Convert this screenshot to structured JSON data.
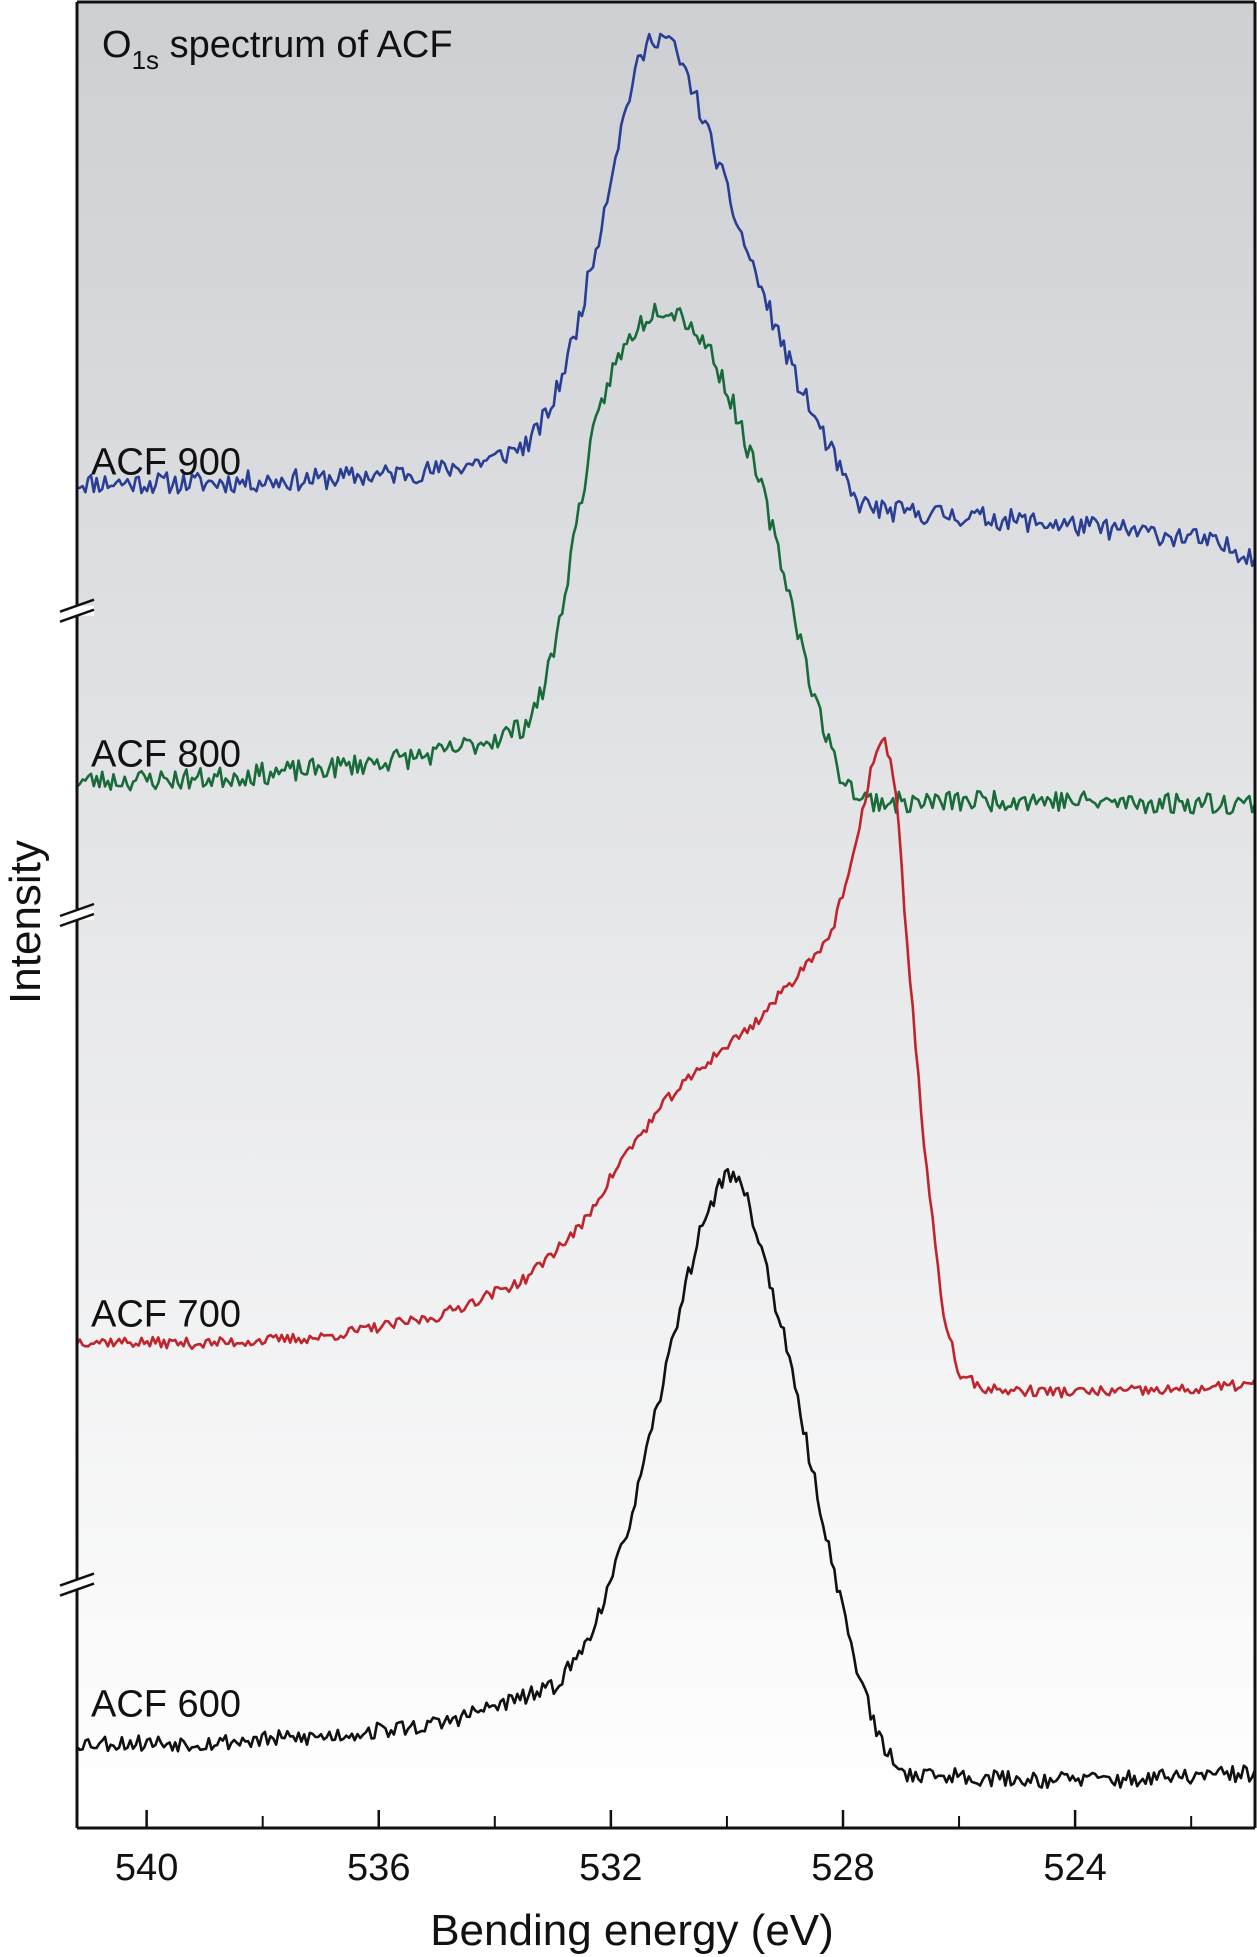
{
  "chart_data": {
    "type": "line",
    "title": {
      "main": "O",
      "subscript": "1s",
      "rest": " spectrum of ACF"
    },
    "xlabel": "Bending energy (eV)",
    "ylabel": "Intensity",
    "x_reversed": true,
    "xlim": [
      541.2,
      520.9
    ],
    "x_ticks": [
      540,
      536,
      532,
      528,
      524
    ],
    "x_minor_ticks": [
      538,
      534,
      530,
      526,
      522
    ],
    "y_units": "arbitrary (stacked)",
    "grid": false,
    "background": "vertical gradient, grey (top) to white (bottom)",
    "axis_breaks": "left axis, between each stacked spectrum",
    "series": [
      {
        "name": "ACF 900",
        "label": "ACF 900",
        "color": "#2a3f94",
        "baseline": 8.2,
        "noise": 0.09,
        "seed": 11,
        "points": [
          [
            541.2,
            8.05
          ],
          [
            539,
            8.05
          ],
          [
            537,
            8.08
          ],
          [
            535,
            8.15
          ],
          [
            534,
            8.25
          ],
          [
            533.4,
            8.38
          ],
          [
            533,
            8.7
          ],
          [
            532.6,
            9.3
          ],
          [
            532.2,
            10.1
          ],
          [
            531.9,
            10.8
          ],
          [
            531.6,
            11.4
          ],
          [
            531.3,
            11.72
          ],
          [
            531.0,
            11.7
          ],
          [
            530.6,
            11.3
          ],
          [
            530.2,
            10.75
          ],
          [
            529.8,
            10.15
          ],
          [
            529.3,
            9.5
          ],
          [
            528.8,
            8.9
          ],
          [
            528.2,
            8.3
          ],
          [
            527.8,
            7.9
          ],
          [
            527.3,
            7.82
          ],
          [
            526,
            7.78
          ],
          [
            524,
            7.7
          ],
          [
            522,
            7.6
          ],
          [
            520.9,
            7.45
          ]
        ]
      },
      {
        "name": "ACF 800",
        "label": "ACF 800",
        "color": "#1a6b3a",
        "baseline": 5.8,
        "noise": 0.09,
        "seed": 23,
        "points": [
          [
            541.2,
            5.6
          ],
          [
            539,
            5.62
          ],
          [
            537,
            5.7
          ],
          [
            535,
            5.82
          ],
          [
            534,
            5.95
          ],
          [
            533.5,
            6.05
          ],
          [
            533.2,
            6.3
          ],
          [
            532.9,
            6.85
          ],
          [
            532.6,
            7.7
          ],
          [
            532.3,
            8.45
          ],
          [
            532.0,
            8.95
          ],
          [
            531.6,
            9.3
          ],
          [
            531.2,
            9.5
          ],
          [
            530.8,
            9.45
          ],
          [
            530.3,
            9.15
          ],
          [
            529.9,
            8.7
          ],
          [
            529.4,
            8.0
          ],
          [
            528.9,
            7.1
          ],
          [
            528.5,
            6.3
          ],
          [
            528.1,
            5.7
          ],
          [
            527.7,
            5.45
          ],
          [
            527,
            5.42
          ],
          [
            525,
            5.45
          ],
          [
            523,
            5.42
          ],
          [
            520.9,
            5.42
          ]
        ]
      },
      {
        "name": "ACF 700",
        "label": "ACF 700",
        "color": "#c0242c",
        "baseline": 1.2,
        "noise": 0.045,
        "seed": 37,
        "points": [
          [
            541.2,
            1.0
          ],
          [
            539,
            0.98
          ],
          [
            537,
            1.03
          ],
          [
            535,
            1.2
          ],
          [
            533.5,
            1.5
          ],
          [
            532.5,
            1.95
          ],
          [
            531.8,
            2.5
          ],
          [
            531,
            3.0
          ],
          [
            530.2,
            3.35
          ],
          [
            529.5,
            3.62
          ],
          [
            528.8,
            4.0
          ],
          [
            528.2,
            4.35
          ],
          [
            527.8,
            5.0
          ],
          [
            527.5,
            5.75
          ],
          [
            527.3,
            5.95
          ],
          [
            527.1,
            5.6
          ],
          [
            526.9,
            4.3
          ],
          [
            526.6,
            2.6
          ],
          [
            526.3,
            1.3
          ],
          [
            526.0,
            0.72
          ],
          [
            525.5,
            0.6
          ],
          [
            524,
            0.58
          ],
          [
            522,
            0.6
          ],
          [
            520.9,
            0.65
          ]
        ]
      },
      {
        "name": "ACF 600",
        "label": "ACF 600",
        "color": "#111111",
        "baseline": -2.0,
        "noise": 0.07,
        "seed": 53,
        "points": [
          [
            541.2,
            -2.3
          ],
          [
            539,
            -2.3
          ],
          [
            537,
            -2.25
          ],
          [
            535,
            -2.15
          ],
          [
            534,
            -2.0
          ],
          [
            533,
            -1.85
          ],
          [
            532.5,
            -1.55
          ],
          [
            532,
            -1.0
          ],
          [
            531.6,
            -0.35
          ],
          [
            531.2,
            0.45
          ],
          [
            530.8,
            1.3
          ],
          [
            530.4,
            2.0
          ],
          [
            530.0,
            2.4
          ],
          [
            529.7,
            2.25
          ],
          [
            529.4,
            1.75
          ],
          [
            529,
            1.0
          ],
          [
            528.6,
            0.1
          ],
          [
            528.2,
            -0.8
          ],
          [
            527.8,
            -1.6
          ],
          [
            527.4,
            -2.25
          ],
          [
            527,
            -2.55
          ],
          [
            525,
            -2.6
          ],
          [
            523,
            -2.6
          ],
          [
            520.9,
            -2.55
          ]
        ]
      }
    ]
  }
}
